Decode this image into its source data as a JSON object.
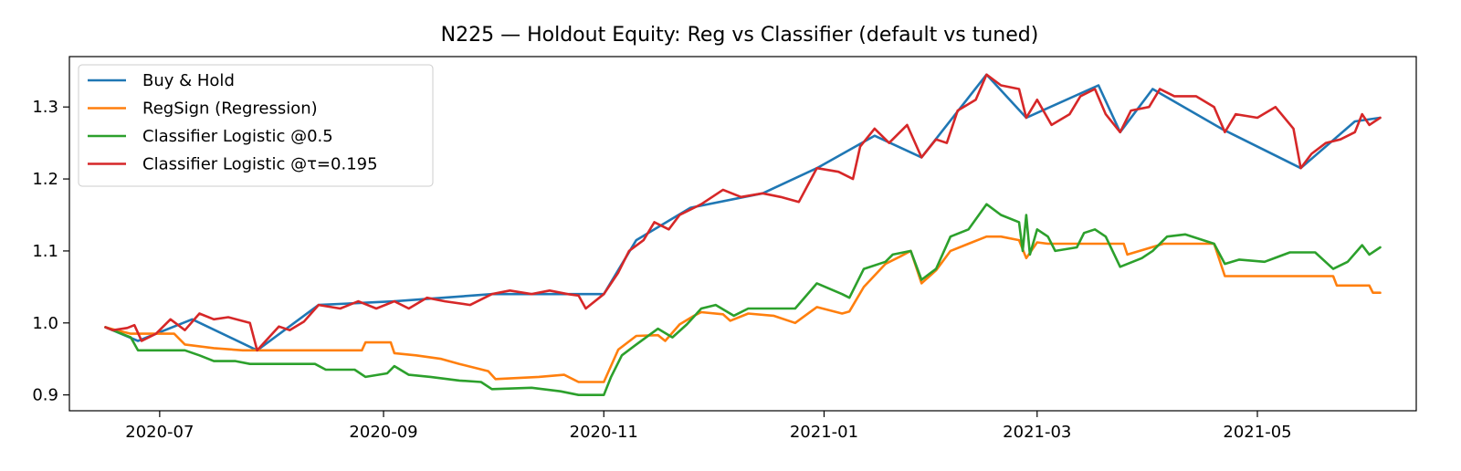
{
  "chart_data": {
    "type": "line",
    "title": "N225 — Holdout Equity: Reg vs Classifier (default vs tuned)",
    "xlabel": "",
    "ylabel": "",
    "xlim": [
      "2020-06-06",
      "2021-06-14"
    ],
    "ylim": [
      0.878,
      1.37
    ],
    "x_ticks": [
      {
        "date": "2020-07-01",
        "label": "2020-07"
      },
      {
        "date": "2020-09-01",
        "label": "2020-09"
      },
      {
        "date": "2020-11-01",
        "label": "2020-11"
      },
      {
        "date": "2021-01-01",
        "label": "2021-01"
      },
      {
        "date": "2021-03-01",
        "label": "2021-03"
      },
      {
        "date": "2021-05-01",
        "label": "2021-05"
      }
    ],
    "y_ticks": [
      {
        "value": 0.9,
        "label": "0.9"
      },
      {
        "value": 1.0,
        "label": "1.0"
      },
      {
        "value": 1.1,
        "label": "1.1"
      },
      {
        "value": 1.2,
        "label": "1.2"
      },
      {
        "value": 1.3,
        "label": "1.3"
      }
    ],
    "grid": false,
    "legend_position": "top-left",
    "series": [
      {
        "name": "Buy & Hold",
        "color": "#1f77b4",
        "points": [
          [
            "2020-06-16",
            0.994
          ],
          [
            "2020-06-25",
            0.975
          ],
          [
            "2020-07-10",
            1.005
          ],
          [
            "2020-07-28",
            0.962
          ],
          [
            "2020-08-14",
            1.025
          ],
          [
            "2020-09-04",
            1.03
          ],
          [
            "2020-10-01",
            1.04
          ],
          [
            "2020-10-23",
            1.04
          ],
          [
            "2020-11-01",
            1.04
          ],
          [
            "2020-11-10",
            1.115
          ],
          [
            "2020-11-25",
            1.16
          ],
          [
            "2020-12-15",
            1.18
          ],
          [
            "2020-12-30",
            1.215
          ],
          [
            "2021-01-15",
            1.26
          ],
          [
            "2021-01-28",
            1.23
          ],
          [
            "2021-02-15",
            1.345
          ],
          [
            "2021-02-26",
            1.285
          ],
          [
            "2021-03-18",
            1.33
          ],
          [
            "2021-03-24",
            1.265
          ],
          [
            "2021-04-02",
            1.325
          ],
          [
            "2021-04-21",
            1.27
          ],
          [
            "2021-05-13",
            1.215
          ],
          [
            "2021-05-28",
            1.28
          ],
          [
            "2021-06-04",
            1.285
          ]
        ]
      },
      {
        "name": "RegSign (Regression)",
        "color": "#ff7f0e",
        "points": [
          [
            "2020-06-16",
            0.994
          ],
          [
            "2020-06-19",
            0.99
          ],
          [
            "2020-06-23",
            0.985
          ],
          [
            "2020-07-05",
            0.985
          ],
          [
            "2020-07-08",
            0.97
          ],
          [
            "2020-07-16",
            0.965
          ],
          [
            "2020-07-24",
            0.962
          ],
          [
            "2020-08-26",
            0.962
          ],
          [
            "2020-08-27",
            0.973
          ],
          [
            "2020-09-03",
            0.973
          ],
          [
            "2020-09-04",
            0.958
          ],
          [
            "2020-09-10",
            0.955
          ],
          [
            "2020-09-17",
            0.95
          ],
          [
            "2020-09-22",
            0.943
          ],
          [
            "2020-09-30",
            0.933
          ],
          [
            "2020-10-02",
            0.922
          ],
          [
            "2020-10-14",
            0.925
          ],
          [
            "2020-10-21",
            0.928
          ],
          [
            "2020-10-25",
            0.918
          ],
          [
            "2020-11-01",
            0.918
          ],
          [
            "2020-11-05",
            0.963
          ],
          [
            "2020-11-10",
            0.982
          ],
          [
            "2020-11-16",
            0.983
          ],
          [
            "2020-11-18",
            0.975
          ],
          [
            "2020-11-22",
            0.998
          ],
          [
            "2020-11-26",
            1.01
          ],
          [
            "2020-11-28",
            1.015
          ],
          [
            "2020-12-04",
            1.012
          ],
          [
            "2020-12-06",
            1.003
          ],
          [
            "2020-12-11",
            1.013
          ],
          [
            "2020-12-18",
            1.01
          ],
          [
            "2020-12-24",
            1.0
          ],
          [
            "2020-12-30",
            1.022
          ],
          [
            "2021-01-06",
            1.013
          ],
          [
            "2021-01-08",
            1.016
          ],
          [
            "2021-01-12",
            1.05
          ],
          [
            "2021-01-18",
            1.082
          ],
          [
            "2021-01-22",
            1.092
          ],
          [
            "2021-01-25",
            1.1
          ],
          [
            "2021-01-28",
            1.055
          ],
          [
            "2021-02-01",
            1.073
          ],
          [
            "2021-02-05",
            1.1
          ],
          [
            "2021-02-10",
            1.11
          ],
          [
            "2021-02-15",
            1.12
          ],
          [
            "2021-02-19",
            1.12
          ],
          [
            "2021-02-24",
            1.115
          ],
          [
            "2021-02-26",
            1.09
          ],
          [
            "2021-03-01",
            1.112
          ],
          [
            "2021-03-04",
            1.11
          ],
          [
            "2021-03-25",
            1.11
          ],
          [
            "2021-03-26",
            1.095
          ],
          [
            "2021-04-05",
            1.11
          ],
          [
            "2021-04-19",
            1.11
          ],
          [
            "2021-04-22",
            1.065
          ],
          [
            "2021-05-22",
            1.065
          ],
          [
            "2021-05-23",
            1.052
          ],
          [
            "2021-06-01",
            1.052
          ],
          [
            "2021-06-02",
            1.042
          ],
          [
            "2021-06-04",
            1.042
          ]
        ]
      },
      {
        "name": "Classifier Logistic @0.5",
        "color": "#2ca02c",
        "points": [
          [
            "2020-06-16",
            0.994
          ],
          [
            "2020-06-23",
            0.98
          ],
          [
            "2020-06-25",
            0.962
          ],
          [
            "2020-07-08",
            0.962
          ],
          [
            "2020-07-12",
            0.955
          ],
          [
            "2020-07-16",
            0.947
          ],
          [
            "2020-07-22",
            0.947
          ],
          [
            "2020-07-26",
            0.943
          ],
          [
            "2020-08-13",
            0.943
          ],
          [
            "2020-08-16",
            0.935
          ],
          [
            "2020-08-24",
            0.935
          ],
          [
            "2020-08-27",
            0.925
          ],
          [
            "2020-09-02",
            0.93
          ],
          [
            "2020-09-04",
            0.94
          ],
          [
            "2020-09-08",
            0.928
          ],
          [
            "2020-09-14",
            0.925
          ],
          [
            "2020-09-22",
            0.92
          ],
          [
            "2020-09-28",
            0.918
          ],
          [
            "2020-10-01",
            0.908
          ],
          [
            "2020-10-12",
            0.91
          ],
          [
            "2020-10-20",
            0.905
          ],
          [
            "2020-10-25",
            0.9
          ],
          [
            "2020-11-01",
            0.9
          ],
          [
            "2020-11-03",
            0.925
          ],
          [
            "2020-11-06",
            0.955
          ],
          [
            "2020-11-10",
            0.97
          ],
          [
            "2020-11-16",
            0.992
          ],
          [
            "2020-11-20",
            0.98
          ],
          [
            "2020-11-24",
            0.998
          ],
          [
            "2020-11-28",
            1.02
          ],
          [
            "2020-12-02",
            1.025
          ],
          [
            "2020-12-07",
            1.01
          ],
          [
            "2020-12-11",
            1.02
          ],
          [
            "2020-12-18",
            1.02
          ],
          [
            "2020-12-24",
            1.02
          ],
          [
            "2020-12-30",
            1.055
          ],
          [
            "2021-01-06",
            1.04
          ],
          [
            "2021-01-08",
            1.035
          ],
          [
            "2021-01-12",
            1.075
          ],
          [
            "2021-01-18",
            1.085
          ],
          [
            "2021-01-20",
            1.095
          ],
          [
            "2021-01-25",
            1.1
          ],
          [
            "2021-01-28",
            1.06
          ],
          [
            "2021-02-01",
            1.075
          ],
          [
            "2021-02-05",
            1.12
          ],
          [
            "2021-02-10",
            1.13
          ],
          [
            "2021-02-15",
            1.165
          ],
          [
            "2021-02-19",
            1.15
          ],
          [
            "2021-02-24",
            1.14
          ],
          [
            "2021-02-25",
            1.1
          ],
          [
            "2021-02-26",
            1.15
          ],
          [
            "2021-02-27",
            1.095
          ],
          [
            "2021-03-01",
            1.13
          ],
          [
            "2021-03-04",
            1.12
          ],
          [
            "2021-03-06",
            1.1
          ],
          [
            "2021-03-12",
            1.105
          ],
          [
            "2021-03-14",
            1.125
          ],
          [
            "2021-03-17",
            1.13
          ],
          [
            "2021-03-20",
            1.12
          ],
          [
            "2021-03-24",
            1.078
          ],
          [
            "2021-03-30",
            1.09
          ],
          [
            "2021-04-02",
            1.1
          ],
          [
            "2021-04-06",
            1.12
          ],
          [
            "2021-04-11",
            1.123
          ],
          [
            "2021-04-19",
            1.11
          ],
          [
            "2021-04-22",
            1.082
          ],
          [
            "2021-04-26",
            1.088
          ],
          [
            "2021-05-03",
            1.085
          ],
          [
            "2021-05-10",
            1.098
          ],
          [
            "2021-05-17",
            1.098
          ],
          [
            "2021-05-22",
            1.075
          ],
          [
            "2021-05-26",
            1.085
          ],
          [
            "2021-05-30",
            1.108
          ],
          [
            "2021-06-01",
            1.095
          ],
          [
            "2021-06-04",
            1.105
          ]
        ]
      },
      {
        "name": "Classifier Logistic @τ=0.195",
        "color": "#d62728",
        "points": [
          [
            "2020-06-16",
            0.994
          ],
          [
            "2020-06-18",
            0.99
          ],
          [
            "2020-06-22",
            0.993
          ],
          [
            "2020-06-24",
            0.997
          ],
          [
            "2020-06-26",
            0.975
          ],
          [
            "2020-06-30",
            0.985
          ],
          [
            "2020-07-04",
            1.005
          ],
          [
            "2020-07-08",
            0.99
          ],
          [
            "2020-07-12",
            1.013
          ],
          [
            "2020-07-16",
            1.005
          ],
          [
            "2020-07-20",
            1.008
          ],
          [
            "2020-07-26",
            1.0
          ],
          [
            "2020-07-28",
            0.962
          ],
          [
            "2020-08-03",
            0.995
          ],
          [
            "2020-08-06",
            0.99
          ],
          [
            "2020-08-10",
            1.002
          ],
          [
            "2020-08-14",
            1.025
          ],
          [
            "2020-08-20",
            1.02
          ],
          [
            "2020-08-25",
            1.03
          ],
          [
            "2020-08-30",
            1.02
          ],
          [
            "2020-09-04",
            1.03
          ],
          [
            "2020-09-08",
            1.02
          ],
          [
            "2020-09-13",
            1.035
          ],
          [
            "2020-09-18",
            1.03
          ],
          [
            "2020-09-25",
            1.025
          ],
          [
            "2020-10-01",
            1.04
          ],
          [
            "2020-10-06",
            1.045
          ],
          [
            "2020-10-12",
            1.04
          ],
          [
            "2020-10-17",
            1.045
          ],
          [
            "2020-10-22",
            1.04
          ],
          [
            "2020-10-25",
            1.038
          ],
          [
            "2020-10-27",
            1.02
          ],
          [
            "2020-11-01",
            1.04
          ],
          [
            "2020-11-05",
            1.07
          ],
          [
            "2020-11-08",
            1.1
          ],
          [
            "2020-11-12",
            1.115
          ],
          [
            "2020-11-15",
            1.14
          ],
          [
            "2020-11-19",
            1.13
          ],
          [
            "2020-11-22",
            1.15
          ],
          [
            "2020-11-28",
            1.165
          ],
          [
            "2020-12-04",
            1.185
          ],
          [
            "2020-12-09",
            1.175
          ],
          [
            "2020-12-15",
            1.18
          ],
          [
            "2020-12-20",
            1.175
          ],
          [
            "2020-12-25",
            1.168
          ],
          [
            "2020-12-30",
            1.215
          ],
          [
            "2021-01-05",
            1.21
          ],
          [
            "2021-01-09",
            1.2
          ],
          [
            "2021-01-11",
            1.245
          ],
          [
            "2021-01-15",
            1.27
          ],
          [
            "2021-01-19",
            1.25
          ],
          [
            "2021-01-24",
            1.275
          ],
          [
            "2021-01-28",
            1.23
          ],
          [
            "2021-02-01",
            1.255
          ],
          [
            "2021-02-04",
            1.25
          ],
          [
            "2021-02-07",
            1.295
          ],
          [
            "2021-02-12",
            1.31
          ],
          [
            "2021-02-15",
            1.345
          ],
          [
            "2021-02-19",
            1.33
          ],
          [
            "2021-02-24",
            1.325
          ],
          [
            "2021-02-26",
            1.285
          ],
          [
            "2021-03-01",
            1.31
          ],
          [
            "2021-03-05",
            1.275
          ],
          [
            "2021-03-10",
            1.29
          ],
          [
            "2021-03-13",
            1.315
          ],
          [
            "2021-03-17",
            1.325
          ],
          [
            "2021-03-20",
            1.29
          ],
          [
            "2021-03-24",
            1.265
          ],
          [
            "2021-03-27",
            1.295
          ],
          [
            "2021-04-01",
            1.3
          ],
          [
            "2021-04-04",
            1.325
          ],
          [
            "2021-04-08",
            1.315
          ],
          [
            "2021-04-14",
            1.315
          ],
          [
            "2021-04-19",
            1.3
          ],
          [
            "2021-04-22",
            1.265
          ],
          [
            "2021-04-25",
            1.29
          ],
          [
            "2021-05-01",
            1.285
          ],
          [
            "2021-05-06",
            1.3
          ],
          [
            "2021-05-11",
            1.27
          ],
          [
            "2021-05-13",
            1.215
          ],
          [
            "2021-05-16",
            1.235
          ],
          [
            "2021-05-20",
            1.25
          ],
          [
            "2021-05-24",
            1.255
          ],
          [
            "2021-05-28",
            1.265
          ],
          [
            "2021-05-30",
            1.29
          ],
          [
            "2021-06-01",
            1.275
          ],
          [
            "2021-06-04",
            1.285
          ]
        ]
      }
    ]
  }
}
